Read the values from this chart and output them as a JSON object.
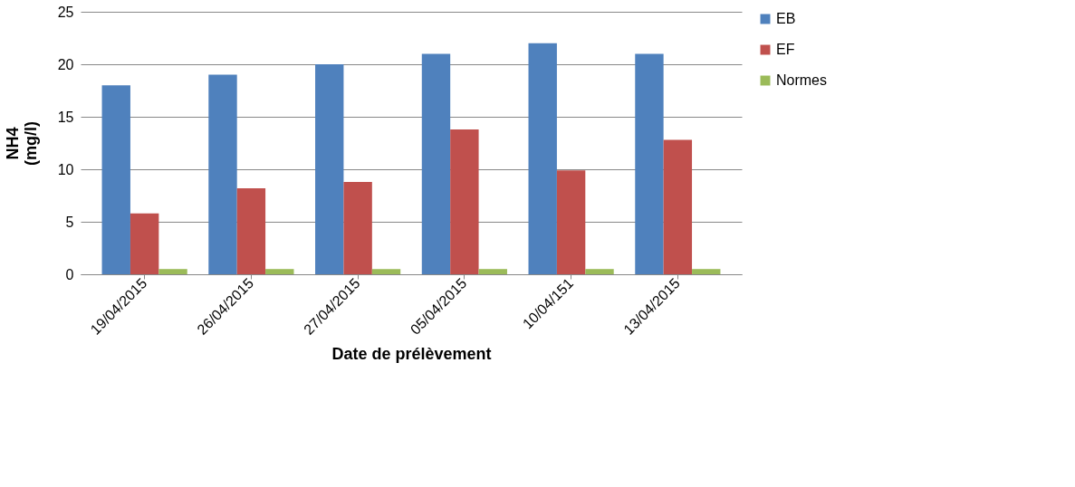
{
  "chart_data": {
    "type": "bar",
    "xlabel": "Date de prélèvement",
    "ylabel": "NH4\n(mg/l)",
    "categories": [
      "19/04/2015",
      "26/04/2015",
      "27/04/2015",
      "05/04/2015",
      "10/04/151",
      "13/04/2015"
    ],
    "series": [
      {
        "name": "EB",
        "color": "#4f81bd",
        "values": [
          18,
          19,
          20,
          21,
          22,
          21
        ]
      },
      {
        "name": "EF",
        "color": "#c0504d",
        "values": [
          5.8,
          8.2,
          8.8,
          13.8,
          9.9,
          12.8
        ]
      },
      {
        "name": "Normes",
        "color": "#9bbb59",
        "values": [
          0.5,
          0.5,
          0.5,
          0.5,
          0.5,
          0.5
        ]
      }
    ],
    "ylim": [
      0,
      25
    ],
    "yticks": [
      0,
      5,
      10,
      15,
      20,
      25
    ],
    "grid": "y",
    "legend": "right"
  }
}
